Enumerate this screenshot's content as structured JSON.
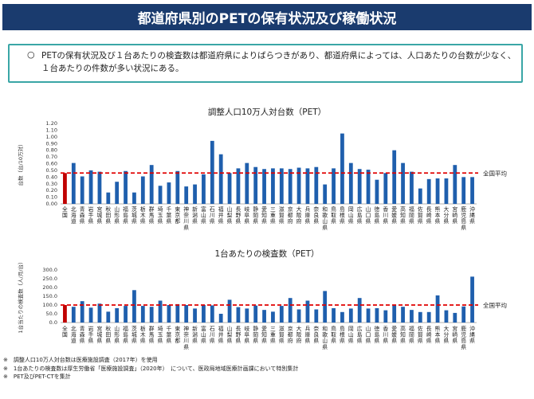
{
  "header": {
    "title": "都道府県別のPETの保有状況及び稼働状況"
  },
  "summary": {
    "mark": "○",
    "text": "PETの保有状況及び１台あたりの検査数は都道府県によりばらつきがあり、都道府県によっては、人口あたりの台数が少なく、１台あたりの件数が多い状況にある。"
  },
  "colors": {
    "national_bar": "#c00000",
    "pref_bar": "#1f5fad",
    "avg_line": "#e00000",
    "title_bg": "#1a3b6e",
    "box_border": "#3aa6a6"
  },
  "chart_data": [
    {
      "type": "bar",
      "title": "調整人口10万人対台数（PET）",
      "ylabel": "台数（台/10万対）",
      "ylim": [
        0,
        1.2
      ],
      "yticks": [
        "0.00",
        "0.10",
        "0.20",
        "0.30",
        "0.40",
        "0.50",
        "0.60",
        "0.70",
        "0.80",
        "0.90",
        "1.00",
        "1.10",
        "1.20"
      ],
      "categories": [
        "全国",
        "北海道",
        "青森県",
        "岩手県",
        "宮城県",
        "秋田県",
        "山形県",
        "福島県",
        "茨城県",
        "栃木県",
        "群馬県",
        "埼玉県",
        "千葉県",
        "東京都",
        "神奈川県",
        "新潟県",
        "富山県",
        "石川県",
        "福井県",
        "山梨県",
        "長野県",
        "岐阜県",
        "静岡県",
        "愛知県",
        "三重県",
        "滋賀県",
        "京都府",
        "大阪府",
        "兵庫県",
        "奈良県",
        "和歌山県",
        "鳥取県",
        "島根県",
        "岡山県",
        "広島県",
        "山口県",
        "徳島県",
        "香川県",
        "愛媛県",
        "高知県",
        "福岡県",
        "佐賀県",
        "長崎県",
        "熊本県",
        "大分県",
        "宮崎県",
        "鹿児島県",
        "沖縄県"
      ],
      "values": [
        0.46,
        0.61,
        0.41,
        0.5,
        0.48,
        0.17,
        0.33,
        0.49,
        0.17,
        0.41,
        0.58,
        0.27,
        0.32,
        0.49,
        0.26,
        0.29,
        0.44,
        0.94,
        0.74,
        0.46,
        0.53,
        0.61,
        0.55,
        0.52,
        0.53,
        0.53,
        0.52,
        0.54,
        0.53,
        0.55,
        0.29,
        0.53,
        1.05,
        0.61,
        0.52,
        0.51,
        0.36,
        0.46,
        0.8,
        0.61,
        0.48,
        0.23,
        0.37,
        0.38,
        0.38,
        0.58,
        0.4,
        0.4
      ],
      "reference_line": {
        "value": 0.46,
        "label": "全国平均"
      }
    },
    {
      "type": "bar",
      "title": "1台あたりの検査数（PET）",
      "ylabel": "1台当たりの検査数（人/月/台）",
      "ylim": [
        0,
        300
      ],
      "yticks": [
        "0.0",
        "50.0",
        "100.0",
        "150.0",
        "200.0",
        "250.0",
        "300.0"
      ],
      "categories": [
        "全国",
        "北海道",
        "青森県",
        "岩手県",
        "宮城県",
        "秋田県",
        "山形県",
        "福島県",
        "茨城県",
        "栃木県",
        "群馬県",
        "埼玉県",
        "千葉県",
        "東京都",
        "神奈川県",
        "新潟県",
        "富山県",
        "石川県",
        "福井県",
        "山梨県",
        "長野県",
        "岐阜県",
        "静岡県",
        "愛知県",
        "三重県",
        "滋賀県",
        "京都府",
        "大阪府",
        "兵庫県",
        "奈良県",
        "和歌山県",
        "鳥取県",
        "島根県",
        "岡山県",
        "広島県",
        "山口県",
        "徳島県",
        "香川県",
        "愛媛県",
        "高知県",
        "福岡県",
        "佐賀県",
        "長崎県",
        "熊本県",
        "大分県",
        "宮崎県",
        "鹿児島県",
        "沖縄県"
      ],
      "values": [
        100,
        90,
        122,
        85,
        108,
        62,
        82,
        95,
        185,
        95,
        90,
        125,
        100,
        105,
        100,
        80,
        100,
        98,
        50,
        130,
        88,
        80,
        97,
        72,
        62,
        95,
        140,
        75,
        125,
        75,
        180,
        82,
        60,
        80,
        140,
        80,
        82,
        70,
        102,
        90,
        72,
        60,
        60,
        155,
        70,
        55,
        92,
        262
      ],
      "reference_line": {
        "value": 100,
        "label": "全国平均"
      }
    }
  ],
  "footnotes": [
    "※　調整人口10万人対台数は医療施設調査（2017年）を使用",
    "※　1台あたりの検査数は厚生労働省「医療施設調査」（2020年）　について、医政局地域医療計画課において特別集計",
    "※　PET及びPET-CTを集計"
  ]
}
